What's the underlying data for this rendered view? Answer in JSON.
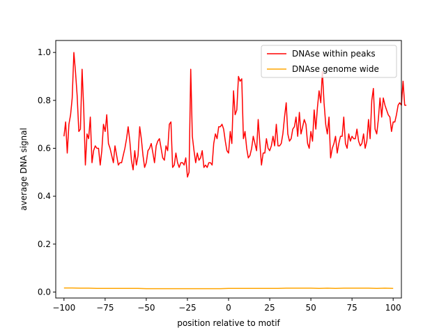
{
  "chart_data": {
    "type": "line",
    "title": "",
    "xlabel": "position relative to motif",
    "ylabel": "average DNA signal",
    "xlim": [
      -105,
      105
    ],
    "ylim": [
      -0.025,
      1.05
    ],
    "xticks": [
      -100,
      -75,
      -50,
      -25,
      0,
      25,
      50,
      75,
      100
    ],
    "yticks": [
      0.0,
      0.2,
      0.4,
      0.6,
      0.8,
      1.0
    ],
    "xtick_labels": [
      "−100",
      "−75",
      "−50",
      "−25",
      "0",
      "25",
      "50",
      "75",
      "100"
    ],
    "ytick_labels": [
      "0.0",
      "0.2",
      "0.4",
      "0.6",
      "0.8",
      "1.0"
    ],
    "grid": false,
    "legend_position": "top-right",
    "series": [
      {
        "name": "DNAse within peaks",
        "color": "#ff0000",
        "x_start": -100,
        "x_step": 1,
        "values": [
          0.65,
          0.71,
          0.58,
          0.7,
          0.74,
          0.81,
          1.0,
          0.92,
          0.82,
          0.67,
          0.68,
          0.93,
          0.76,
          0.53,
          0.66,
          0.64,
          0.73,
          0.54,
          0.59,
          0.61,
          0.6,
          0.6,
          0.53,
          0.59,
          0.7,
          0.67,
          0.74,
          0.62,
          0.6,
          0.57,
          0.54,
          0.61,
          0.57,
          0.53,
          0.54,
          0.54,
          0.57,
          0.6,
          0.64,
          0.69,
          0.63,
          0.55,
          0.51,
          0.59,
          0.53,
          0.57,
          0.69,
          0.64,
          0.57,
          0.52,
          0.54,
          0.59,
          0.6,
          0.62,
          0.58,
          0.54,
          0.61,
          0.63,
          0.64,
          0.6,
          0.56,
          0.55,
          0.61,
          0.59,
          0.7,
          0.71,
          0.52,
          0.53,
          0.58,
          0.54,
          0.52,
          0.54,
          0.54,
          0.53,
          0.56,
          0.48,
          0.5,
          0.93,
          0.65,
          0.59,
          0.54,
          0.58,
          0.55,
          0.56,
          0.59,
          0.52,
          0.53,
          0.52,
          0.54,
          0.54,
          0.53,
          0.62,
          0.66,
          0.64,
          0.69,
          0.69,
          0.7,
          0.68,
          0.63,
          0.59,
          0.58,
          0.67,
          0.62,
          0.84,
          0.74,
          0.76,
          0.9,
          0.88,
          0.89,
          0.64,
          0.67,
          0.6,
          0.56,
          0.57,
          0.6,
          0.65,
          0.62,
          0.59,
          0.72,
          0.62,
          0.53,
          0.58,
          0.58,
          0.64,
          0.6,
          0.59,
          0.61,
          0.65,
          0.61,
          0.7,
          0.61,
          0.61,
          0.62,
          0.66,
          0.73,
          0.79,
          0.66,
          0.63,
          0.64,
          0.68,
          0.69,
          0.73,
          0.65,
          0.75,
          0.66,
          0.69,
          0.72,
          0.7,
          0.62,
          0.6,
          0.67,
          0.63,
          0.76,
          0.68,
          0.77,
          0.84,
          0.79,
          0.92,
          0.79,
          0.7,
          0.66,
          0.73,
          0.56,
          0.6,
          0.62,
          0.65,
          0.58,
          0.62,
          0.65,
          0.65,
          0.73,
          0.62,
          0.6,
          0.66,
          0.63,
          0.65,
          0.64,
          0.64,
          0.68,
          0.63,
          0.61,
          0.62,
          0.66,
          0.6,
          0.63,
          0.72,
          0.64,
          0.8,
          0.85,
          0.68,
          0.66,
          0.72,
          0.81,
          0.73,
          0.81,
          0.78,
          0.76,
          0.74,
          0.73,
          0.67,
          0.71,
          0.71,
          0.74,
          0.78,
          0.79,
          0.78,
          0.88,
          0.78,
          0.78
        ]
      },
      {
        "name": "DNAse genome wide",
        "color": "#ffa500",
        "x": [
          -100,
          -95,
          -90,
          -85,
          -80,
          -75,
          -70,
          -65,
          -60,
          -55,
          -50,
          -45,
          -40,
          -35,
          -30,
          -25,
          -20,
          -15,
          -10,
          -5,
          0,
          5,
          10,
          15,
          20,
          25,
          30,
          35,
          40,
          45,
          50,
          55,
          60,
          65,
          70,
          75,
          80,
          85,
          90,
          95,
          100
        ],
        "values": [
          0.017,
          0.017,
          0.016,
          0.016,
          0.015,
          0.015,
          0.015,
          0.015,
          0.015,
          0.015,
          0.014,
          0.014,
          0.014,
          0.014,
          0.014,
          0.014,
          0.014,
          0.014,
          0.014,
          0.014,
          0.015,
          0.015,
          0.015,
          0.015,
          0.015,
          0.015,
          0.015,
          0.016,
          0.016,
          0.016,
          0.016,
          0.015,
          0.016,
          0.015,
          0.016,
          0.016,
          0.016,
          0.016,
          0.015,
          0.016,
          0.015
        ]
      }
    ]
  }
}
